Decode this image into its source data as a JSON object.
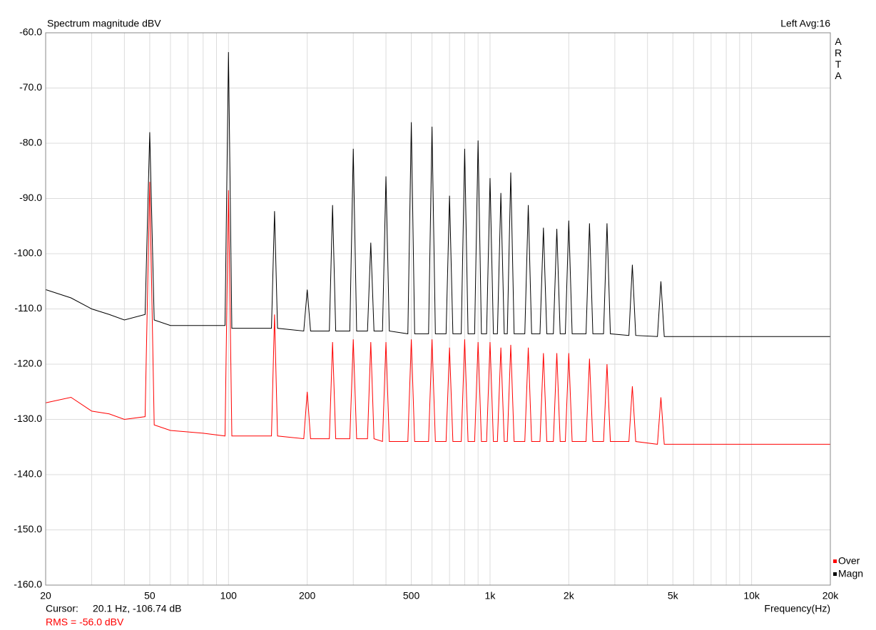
{
  "chart_data": {
    "type": "line",
    "title": "Spectrum magnitude dBV",
    "channel_label": "Left  Avg:16",
    "side_label": "ARTA",
    "xlabel": "Frequency(Hz)",
    "cursor_label": "Cursor:",
    "cursor_value": "20.1 Hz, -106.74 dB",
    "rms_label": "RMS =  -56.0 dBV",
    "xscale": "log",
    "grid": true,
    "legend": "lower right",
    "xlim": [
      20,
      20000
    ],
    "ylim": [
      -160,
      -60
    ],
    "xticks": [
      20,
      50,
      100,
      200,
      500,
      {
        "value": 1000,
        "label": "1k"
      },
      {
        "value": 2000,
        "label": "2k"
      },
      {
        "value": 5000,
        "label": "5k"
      },
      {
        "value": 10000,
        "label": "10k"
      },
      {
        "value": 20000,
        "label": "20k"
      }
    ],
    "xminorticks": [
      30,
      40,
      60,
      70,
      80,
      90,
      300,
      400,
      600,
      700,
      800,
      900,
      3000,
      4000,
      6000,
      7000,
      8000,
      9000
    ],
    "yticks": [
      {
        "value": -60,
        "label": "-60.0"
      },
      {
        "value": -70,
        "label": "-70.0"
      },
      {
        "value": -80,
        "label": "-80.0"
      },
      {
        "value": -90,
        "label": "-90.0"
      },
      {
        "value": -100,
        "label": "-100.0"
      },
      {
        "value": -110,
        "label": "-110.0"
      },
      {
        "value": -120,
        "label": "-120.0"
      },
      {
        "value": -130,
        "label": "-130.0"
      },
      {
        "value": -140,
        "label": "-140.0"
      },
      {
        "value": -150,
        "label": "-150.0"
      },
      {
        "value": -160,
        "label": "-160.0"
      }
    ],
    "x": [
      20,
      25,
      30,
      35,
      40,
      48,
      50,
      52,
      60,
      80,
      97,
      100,
      103,
      130,
      146,
      150,
      154,
      194,
      200,
      206,
      243,
      250,
      257,
      291,
      300,
      309,
      340,
      350,
      360,
      388,
      400,
      412,
      485,
      500,
      515,
      582,
      600,
      618,
      679,
      700,
      721,
      776,
      800,
      824,
      873,
      900,
      927,
      970,
      1000,
      1030,
      1067,
      1100,
      1133,
      1164,
      1200,
      1236,
      1358,
      1400,
      1442,
      1552,
      1600,
      1648,
      1746,
      1800,
      1854,
      1940,
      2000,
      2060,
      2328,
      2400,
      2472,
      2716,
      2800,
      2884,
      3395,
      3500,
      3605,
      4365,
      4500,
      4635,
      7000,
      10000,
      14000,
      20000
    ],
    "series": [
      {
        "name": "Magn",
        "color": "#000000",
        "values": [
          -106.5,
          -108,
          -110,
          -111,
          -112,
          -111,
          -78,
          -112,
          -113,
          -113,
          -113,
          -63.5,
          -113.5,
          -113.5,
          -113.5,
          -92.3,
          -113.5,
          -114,
          -106.5,
          -114,
          -114,
          -91.2,
          -114,
          -114,
          -81,
          -114,
          -114,
          -98,
          -114,
          -114,
          -86,
          -114,
          -114.5,
          -76.2,
          -114.5,
          -114.5,
          -77,
          -114.5,
          -114.5,
          -89.5,
          -114.5,
          -114.5,
          -81,
          -114.5,
          -114.5,
          -79.5,
          -114.5,
          -114.5,
          -86.3,
          -114.5,
          -114.5,
          -89,
          -114.5,
          -114.5,
          -85.3,
          -114.5,
          -114.5,
          -91.2,
          -114.5,
          -114.5,
          -95.3,
          -114.5,
          -114.5,
          -95.5,
          -114.5,
          -114.5,
          -94,
          -114.5,
          -114.5,
          -94.5,
          -114.5,
          -114.5,
          -94.5,
          -114.5,
          -114.8,
          -102,
          -114.8,
          -115,
          -105,
          -115,
          -115,
          -115,
          -115,
          -115
        ]
      },
      {
        "name": "Over",
        "color": "#ff0000",
        "values": [
          -127,
          -126,
          -128.5,
          -129,
          -130,
          -129.5,
          -87,
          -131,
          -132,
          -132.5,
          -133,
          -88.5,
          -133,
          -133,
          -133,
          -111,
          -133,
          -133.5,
          -125,
          -133.5,
          -133.5,
          -116,
          -133.5,
          -133.5,
          -115.5,
          -133.5,
          -133.5,
          -116,
          -133.5,
          -134,
          -116,
          -134,
          -134,
          -115.5,
          -134,
          -134,
          -115.5,
          -134,
          -134,
          -117,
          -134,
          -134,
          -115.5,
          -134,
          -134,
          -116,
          -134,
          -134,
          -116,
          -134,
          -134,
          -117,
          -134,
          -134,
          -116.5,
          -134,
          -134,
          -117,
          -134,
          -134,
          -118,
          -134,
          -134,
          -118,
          -134,
          -134,
          -118,
          -134,
          -134,
          -119,
          -134,
          -134,
          -120,
          -134,
          -134,
          -124,
          -134,
          -134.5,
          -126,
          -134.5,
          -134.5,
          -134.5,
          -134.5,
          -134.5
        ]
      }
    ]
  }
}
